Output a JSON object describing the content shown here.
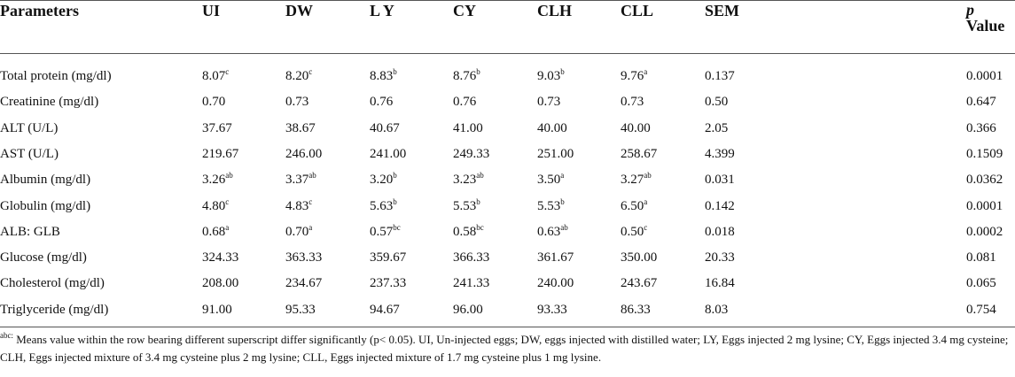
{
  "table": {
    "header": [
      "Parameters",
      "UI",
      "DW",
      "L Y",
      "CY",
      "CLH",
      "CLL",
      "SEM",
      {
        "em": "p",
        "text": "Value"
      }
    ],
    "rows": [
      [
        "Total protein (mg/dl)",
        {
          "text": "8.07",
          "sup": "c"
        },
        {
          "text": "8.20",
          "sup": "c"
        },
        {
          "text": "8.83",
          "sup": "b"
        },
        {
          "text": "8.76",
          "sup": "b"
        },
        {
          "text": "9.03",
          "sup": "b"
        },
        {
          "text": "9.76",
          "sup": "a"
        },
        "0.137",
        "0.0001"
      ],
      [
        "Creatinine (mg/dl)",
        "0.70",
        "0.73",
        "0.76",
        "0.76",
        "0.73",
        "0.73",
        "0.50",
        "0.647"
      ],
      [
        "ALT (U/L)",
        "37.67",
        "38.67",
        "40.67",
        "41.00",
        "40.00",
        "40.00",
        "2.05",
        "0.366"
      ],
      [
        "AST (U/L)",
        "219.67",
        "246.00",
        "241.00",
        "249.33",
        "251.00",
        "258.67",
        "4.399",
        "0.1509"
      ],
      [
        "Albumin (mg/dl)",
        {
          "text": "3.26",
          "sup": "ab"
        },
        {
          "text": "3.37",
          "sup": "ab"
        },
        {
          "text": "3.20",
          "sup": "b"
        },
        {
          "text": "3.23",
          "sup": "ab"
        },
        {
          "text": "3.50",
          "sup": "a"
        },
        {
          "text": "3.27",
          "sup": "ab"
        },
        "0.031",
        "0.0362"
      ],
      [
        "Globulin (mg/dl)",
        {
          "text": "4.80",
          "sup": "c"
        },
        {
          "text": "4.83",
          "sup": "c"
        },
        {
          "text": "5.63",
          "sup": "b"
        },
        {
          "text": "5.53",
          "sup": "b"
        },
        {
          "text": "5.53",
          "sup": "b"
        },
        {
          "text": "6.50",
          "sup": "a"
        },
        "0.142",
        "0.0001"
      ],
      [
        "ALB: GLB",
        {
          "text": "0.68",
          "sup": "a"
        },
        {
          "text": "0.70",
          "sup": "a"
        },
        {
          "text": "0.57",
          "sup": "bc"
        },
        {
          "text": "0.58",
          "sup": "bc"
        },
        {
          "text": "0.63",
          "sup": "ab"
        },
        {
          "text": "0.50",
          "sup": "c"
        },
        "0.018",
        "0.0002"
      ],
      [
        "Glucose (mg/dl)",
        "324.33",
        "363.33",
        "359.67",
        "366.33",
        "361.67",
        "350.00",
        "20.33",
        "0.081"
      ],
      [
        "Cholesterol (mg/dl)",
        "208.00",
        "234.67",
        "237.33",
        "241.33",
        "240.00",
        "243.67",
        "16.84",
        "0.065"
      ],
      [
        "Triglyceride (mg/dl)",
        "91.00",
        "95.33",
        "94.67",
        "96.00",
        "93.33",
        "86.33",
        "8.03",
        "0.754"
      ]
    ],
    "footnote": {
      "sup": "abc:",
      "text": "Means value within the row bearing different superscript differ significantly (p< 0.05). UI, Un-injected eggs; DW, eggs injected with distilled water; LY, Eggs injected 2 mg lysine; CY, Eggs injected 3.4 mg cysteine; CLH, Eggs injected mixture of 3.4 mg cysteine plus 2 mg lysine; CLL, Eggs injected mixture of 1.7 mg cysteine plus 1 mg lysine."
    }
  }
}
